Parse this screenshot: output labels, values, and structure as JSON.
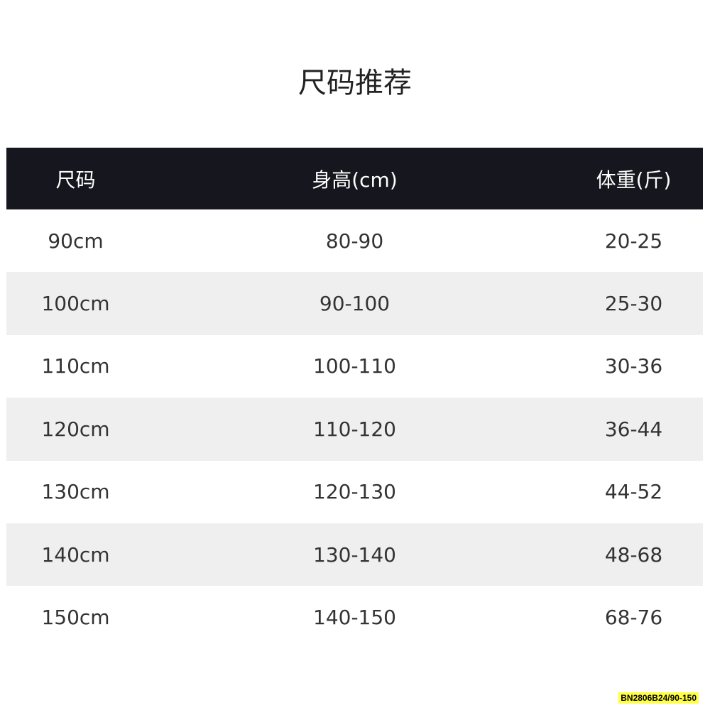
{
  "title": "尺码推荐",
  "table": {
    "header": [
      "尺码",
      "身高(cm)",
      "体重(斤)"
    ],
    "rows": [
      [
        "90cm",
        "80-90",
        "20-25"
      ],
      [
        "100cm",
        "90-100",
        "25-30"
      ],
      [
        "110cm",
        "100-110",
        "30-36"
      ],
      [
        "120cm",
        "110-120",
        "36-44"
      ],
      [
        "130cm",
        "120-130",
        "44-52"
      ],
      [
        "140cm",
        "130-140",
        "48-68"
      ],
      [
        "150cm",
        "140-150",
        "68-76"
      ]
    ]
  },
  "code": "BN2806B24/90-150"
}
